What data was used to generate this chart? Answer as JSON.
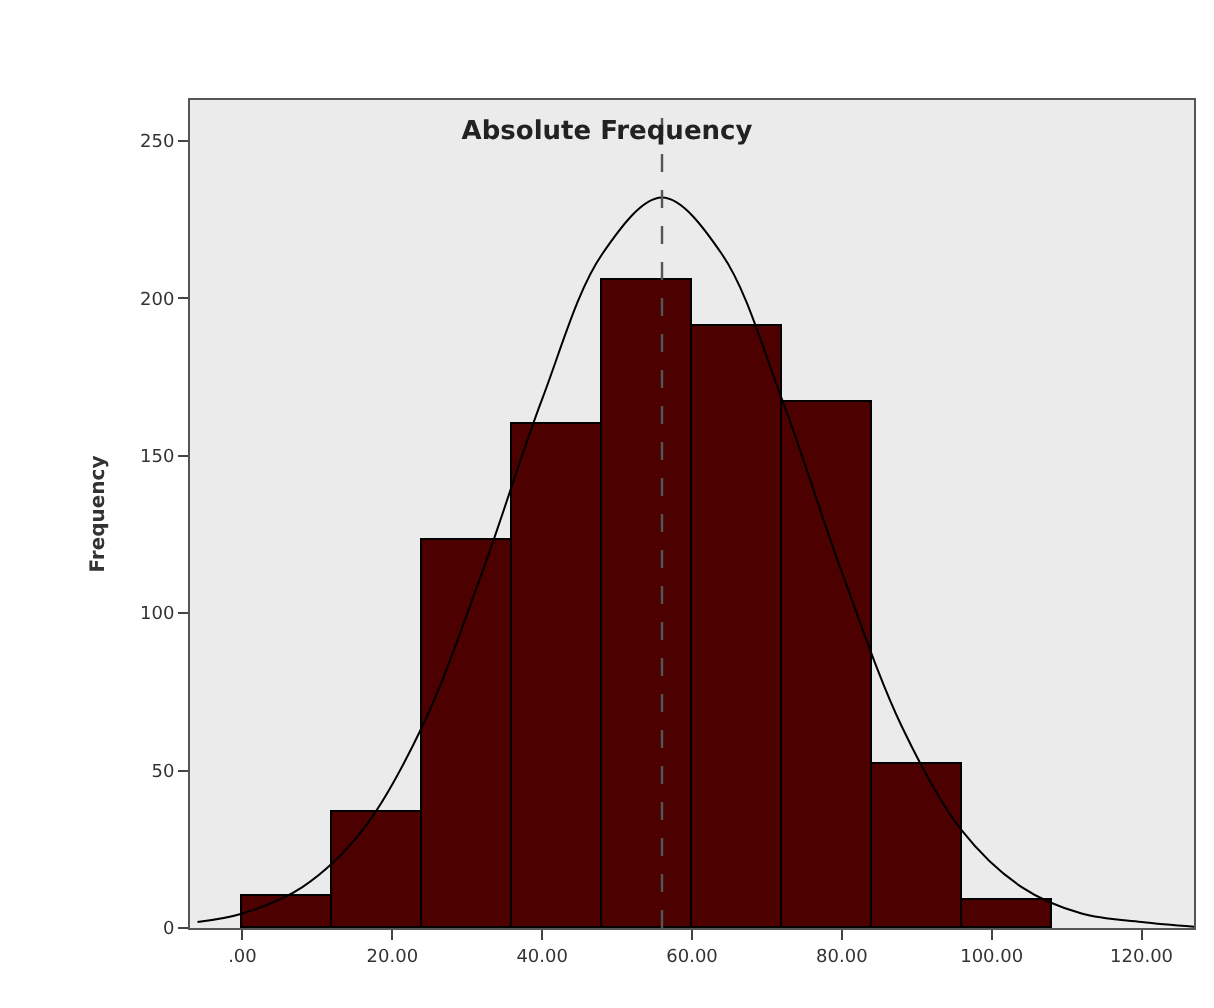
{
  "chart_data": {
    "type": "histogram",
    "title": "Absolute Frequency",
    "ylabel": "Frequency",
    "bins": [
      0,
      12,
      24,
      36,
      48,
      60,
      72,
      84,
      96,
      108
    ],
    "values": [
      10,
      37,
      123,
      160,
      206,
      191,
      167,
      52,
      9
    ],
    "color": "#4d0000",
    "series": [
      {
        "type": "line",
        "color": "#000000",
        "x": [
          -6,
          0,
          8,
          16,
          24,
          32,
          40,
          48,
          56,
          64,
          72,
          80,
          88,
          96,
          104,
          112,
          120,
          127
        ],
        "values": [
          1.9,
          4.6,
          13,
          31,
          64,
          113,
          168,
          214,
          232,
          214,
          168,
          113,
          64,
          31,
          13,
          4.6,
          1.9,
          0.4
        ]
      }
    ],
    "ref_lines": [
      {
        "axis": "x",
        "value": 56,
        "color": "#555555",
        "line_style": "dashed"
      }
    ],
    "xlim": [
      -7,
      127
    ],
    "xticks": [
      {
        "value": 0,
        "label": ".00"
      },
      {
        "value": 20,
        "label": "20.00"
      },
      {
        "value": 40,
        "label": "40.00"
      },
      {
        "value": 60,
        "label": "60.00"
      },
      {
        "value": 80,
        "label": "80.00"
      },
      {
        "value": 100,
        "label": "100.00"
      },
      {
        "value": 120,
        "label": "120.00"
      }
    ],
    "ylim": [
      0,
      263
    ],
    "yticks": [
      0,
      50,
      100,
      150,
      200,
      250
    ],
    "grid": false,
    "marker": "none"
  }
}
